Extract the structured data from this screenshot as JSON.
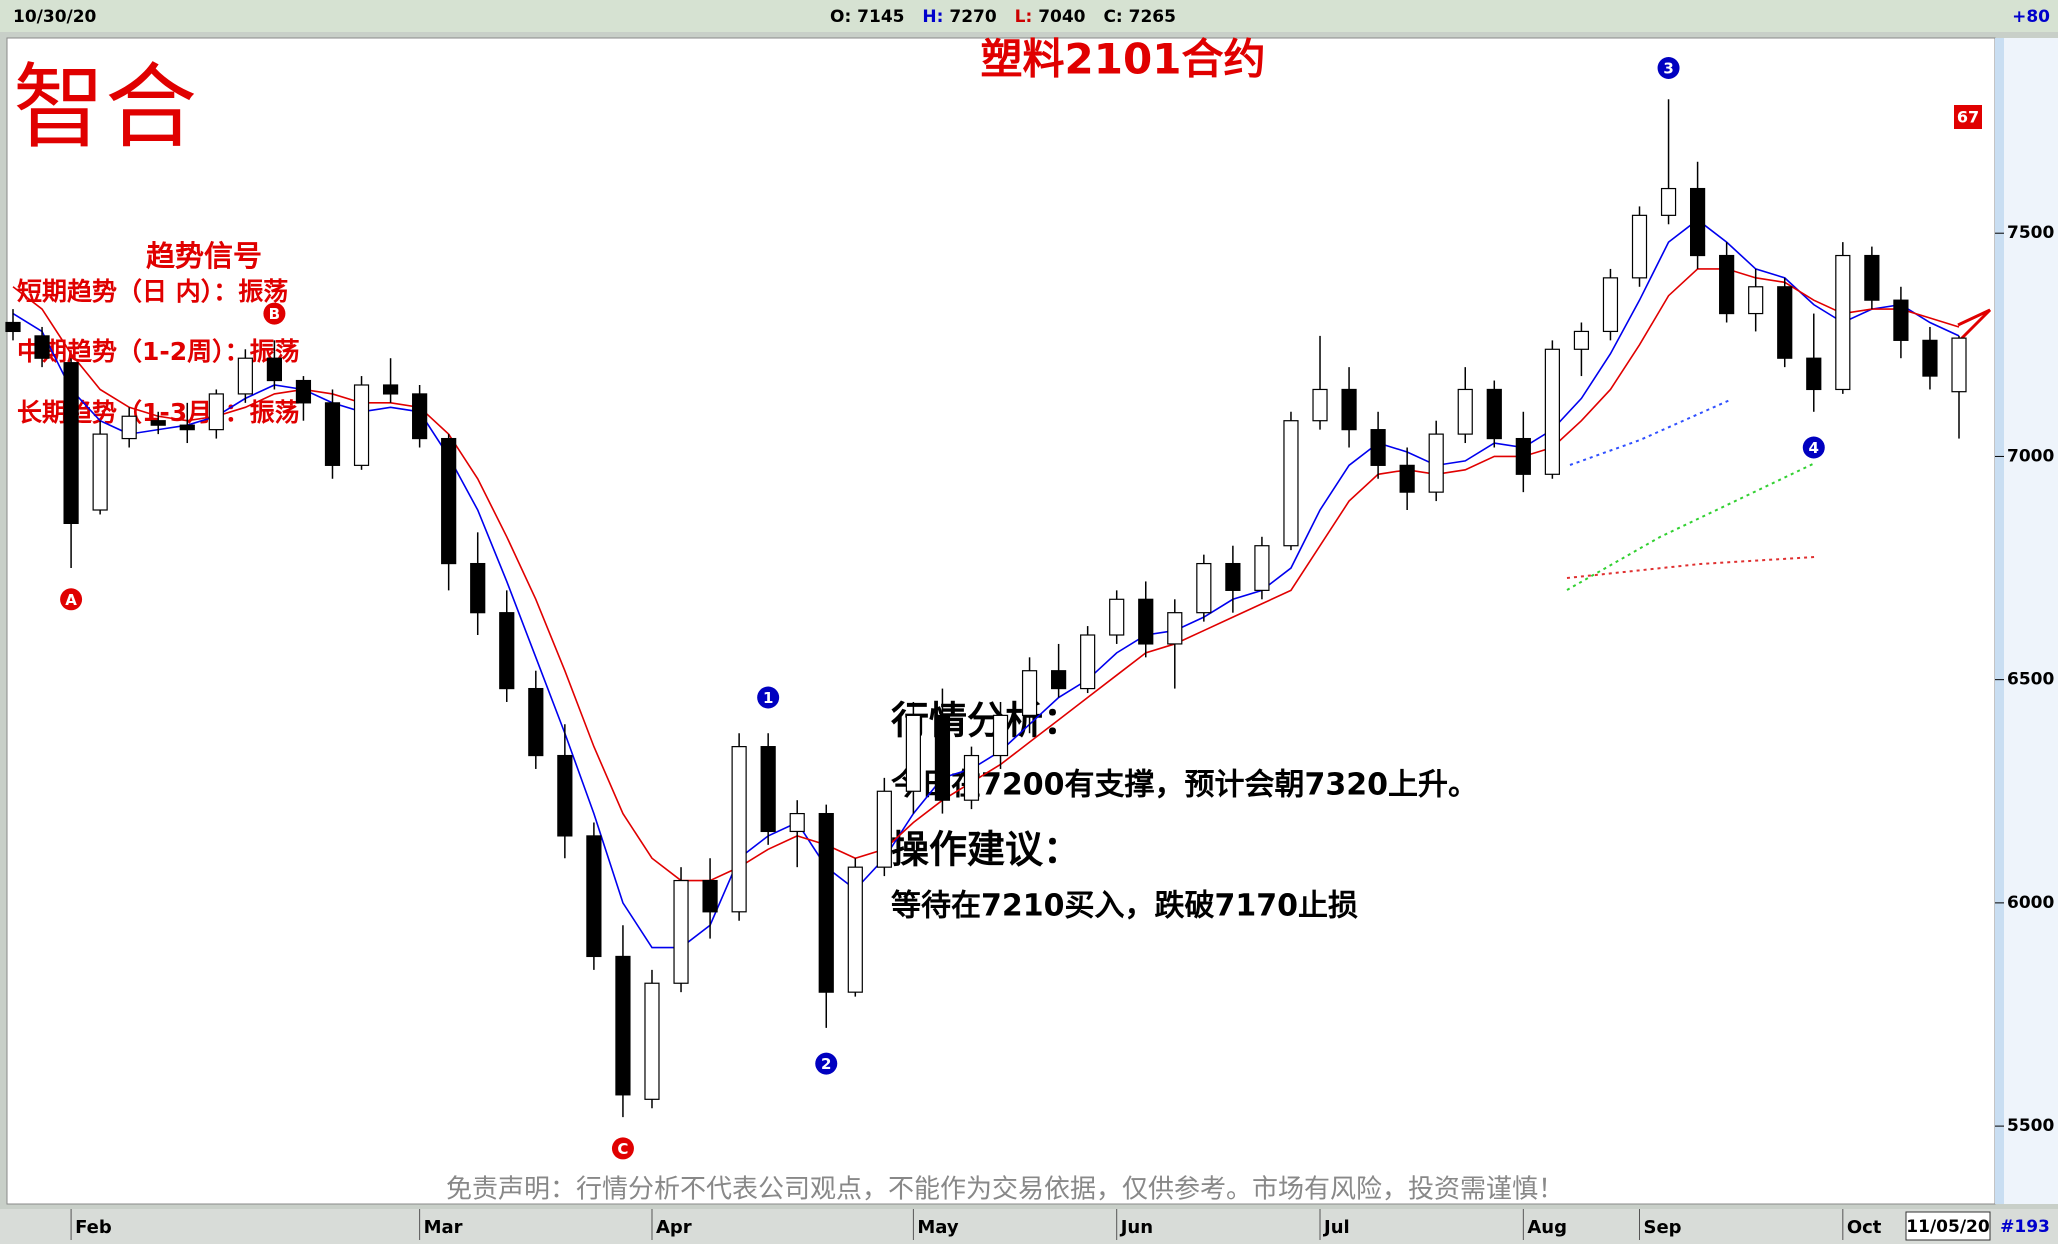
{
  "header": {
    "date": "10/30/20",
    "open_label": "O:",
    "open": 7145,
    "high_label": "H:",
    "high": 7270,
    "low_label": "L:",
    "low": 7040,
    "close_label": "C:",
    "close": 7265,
    "change": "+80"
  },
  "logo": "智合",
  "signals": {
    "title": "趋势信号",
    "lines": [
      "短期趋势（日 内）：振荡",
      "中期趋势（1-2周）：振荡",
      "长期趋势（1-3月）：振荡"
    ]
  },
  "analysis": {
    "heading": "行情分析：",
    "text": "今日在7200有支撑，预计会朝7320上升。",
    "advice_heading": "操作建议：",
    "advice": "等待在7210买入，跌破7170止损"
  },
  "disclaimer": "免责声明：行情分析不代表公司观点，不能作为交易依据，仅供参考。市场有风险，投资需谨慎！",
  "footer": {
    "date": "11/05/20",
    "count": "#193"
  },
  "badge": 67,
  "chart_data": {
    "type": "candlestick",
    "title": "塑料2101合约",
    "categories": [
      null,
      null,
      "Feb",
      null,
      null,
      null,
      null,
      null,
      null,
      null,
      null,
      null,
      null,
      null,
      "Mar",
      null,
      null,
      null,
      null,
      null,
      null,
      null,
      "Apr",
      null,
      null,
      null,
      null,
      null,
      null,
      null,
      null,
      "May",
      null,
      null,
      null,
      null,
      null,
      null,
      "Jun",
      null,
      null,
      null,
      null,
      null,
      null,
      "Jul",
      null,
      null,
      null,
      null,
      null,
      null,
      "Aug",
      null,
      null,
      null,
      "Sep",
      null,
      null,
      null,
      null,
      null,
      null,
      "Oct",
      null,
      null,
      null,
      null
    ],
    "open": [
      7300,
      7270,
      7210,
      6880,
      7040,
      7080,
      7070,
      7060,
      7140,
      7220,
      7170,
      7120,
      6980,
      7160,
      7140,
      7040,
      6760,
      6650,
      6480,
      6330,
      6150,
      5880,
      5560,
      5820,
      6050,
      5980,
      6350,
      6160,
      6200,
      5800,
      6080,
      6250,
      6420,
      6230,
      6330,
      6420,
      6520,
      6480,
      6600,
      6680,
      6580,
      6650,
      6760,
      6700,
      6800,
      7080,
      7150,
      7060,
      6980,
      6920,
      7050,
      7150,
      7040,
      6960,
      7240,
      7280,
      7400,
      7540,
      7600,
      7450,
      7320,
      7380,
      7220,
      7150,
      7450,
      7350,
      7260,
      7145
    ],
    "high": [
      7330,
      7290,
      7220,
      7080,
      7110,
      7100,
      7120,
      7150,
      7240,
      7260,
      7180,
      7150,
      7180,
      7220,
      7160,
      7050,
      6830,
      6700,
      6520,
      6400,
      6180,
      5950,
      5850,
      6080,
      6100,
      6380,
      6380,
      6230,
      6220,
      6100,
      6280,
      6450,
      6480,
      6350,
      6450,
      6550,
      6580,
      6620,
      6700,
      6720,
      6680,
      6780,
      6800,
      6820,
      7100,
      7270,
      7200,
      7100,
      7020,
      7080,
      7200,
      7170,
      7100,
      7260,
      7300,
      7420,
      7560,
      7800,
      7660,
      7480,
      7420,
      7400,
      7320,
      7480,
      7470,
      7380,
      7290,
      7270
    ],
    "low": [
      7260,
      7200,
      6750,
      6870,
      7020,
      7050,
      7030,
      7040,
      7120,
      7150,
      7080,
      6950,
      6970,
      7120,
      7020,
      6700,
      6600,
      6450,
      6300,
      6100,
      5850,
      5520,
      5540,
      5800,
      5920,
      5960,
      6130,
      6080,
      5720,
      5790,
      6060,
      6200,
      6200,
      6210,
      6300,
      6380,
      6460,
      6470,
      6580,
      6550,
      6480,
      6630,
      6650,
      6680,
      6790,
      7060,
      7020,
      6950,
      6880,
      6900,
      7030,
      7020,
      6920,
      6950,
      7180,
      7260,
      7380,
      7520,
      7420,
      7300,
      7280,
      7200,
      7100,
      7140,
      7330,
      7220,
      7150,
      7040
    ],
    "close": [
      7280,
      7220,
      6850,
      7050,
      7090,
      7070,
      7060,
      7140,
      7220,
      7170,
      7120,
      6980,
      7160,
      7140,
      7040,
      6760,
      6650,
      6480,
      6330,
      6150,
      5880,
      5570,
      5820,
      6050,
      5980,
      6350,
      6160,
      6200,
      5800,
      6080,
      6250,
      6420,
      6230,
      6330,
      6420,
      6520,
      6480,
      6600,
      6680,
      6580,
      6650,
      6760,
      6700,
      6800,
      7080,
      7150,
      7060,
      6980,
      6920,
      7050,
      7150,
      7040,
      6960,
      7240,
      7280,
      7400,
      7540,
      7600,
      7450,
      7320,
      7380,
      7220,
      7150,
      7450,
      7350,
      7260,
      7180,
      7265
    ],
    "series": [
      {
        "color": "#0000ee",
        "values": [
          7320,
          7280,
          7150,
          7080,
          7050,
          7060,
          7070,
          7090,
          7130,
          7160,
          7150,
          7120,
          7100,
          7110,
          7100,
          7000,
          6880,
          6720,
          6550,
          6380,
          6200,
          6000,
          5900,
          5900,
          5950,
          6100,
          6150,
          6180,
          6080,
          6030,
          6100,
          6200,
          6280,
          6300,
          6340,
          6400,
          6460,
          6500,
          6560,
          6600,
          6610,
          6640,
          6680,
          6700,
          6750,
          6880,
          6980,
          7030,
          7010,
          6980,
          6990,
          7030,
          7020,
          7060,
          7130,
          7230,
          7350,
          7480,
          7530,
          7480,
          7420,
          7400,
          7340,
          7300,
          7330,
          7340,
          7300,
          7270
        ]
      },
      {
        "color": "#e00000",
        "values": [
          7380,
          7330,
          7230,
          7150,
          7110,
          7090,
          7080,
          7090,
          7110,
          7140,
          7150,
          7140,
          7120,
          7120,
          7110,
          7050,
          6950,
          6820,
          6680,
          6520,
          6350,
          6200,
          6100,
          6050,
          6050,
          6080,
          6120,
          6150,
          6130,
          6100,
          6120,
          6180,
          6230,
          6270,
          6310,
          6360,
          6410,
          6460,
          6510,
          6560,
          6580,
          6610,
          6640,
          6670,
          6700,
          6800,
          6900,
          6960,
          6970,
          6960,
          6970,
          7000,
          7000,
          7020,
          7080,
          7150,
          7250,
          7360,
          7420,
          7420,
          7400,
          7390,
          7350,
          7320,
          7330,
          7330,
          7310,
          7290
        ]
      }
    ],
    "up_color": "#ffffff",
    "down_color": "#000000",
    "annotations": [
      {
        "label": "A",
        "index": 2,
        "price": 6680,
        "color": "#e00000"
      },
      {
        "label": "B",
        "index": 9,
        "price": 7320,
        "color": "#e00000"
      },
      {
        "label": "C",
        "index": 21,
        "price": 5450,
        "color": "#e00000"
      },
      {
        "label": "1",
        "index": 26,
        "price": 6460,
        "color": "#0000c0"
      },
      {
        "label": "2",
        "index": 28,
        "price": 5640,
        "color": "#0000c0"
      },
      {
        "label": "3",
        "index": 57,
        "price": 7870,
        "color": "#0000c0"
      },
      {
        "label": "4",
        "index": 62,
        "price": 7020,
        "color": "#0000c0"
      }
    ],
    "ylim": [
      5330,
      7935
    ],
    "yticks": [
      5500,
      6000,
      6500,
      7000,
      7500
    ],
    "grid": false
  }
}
